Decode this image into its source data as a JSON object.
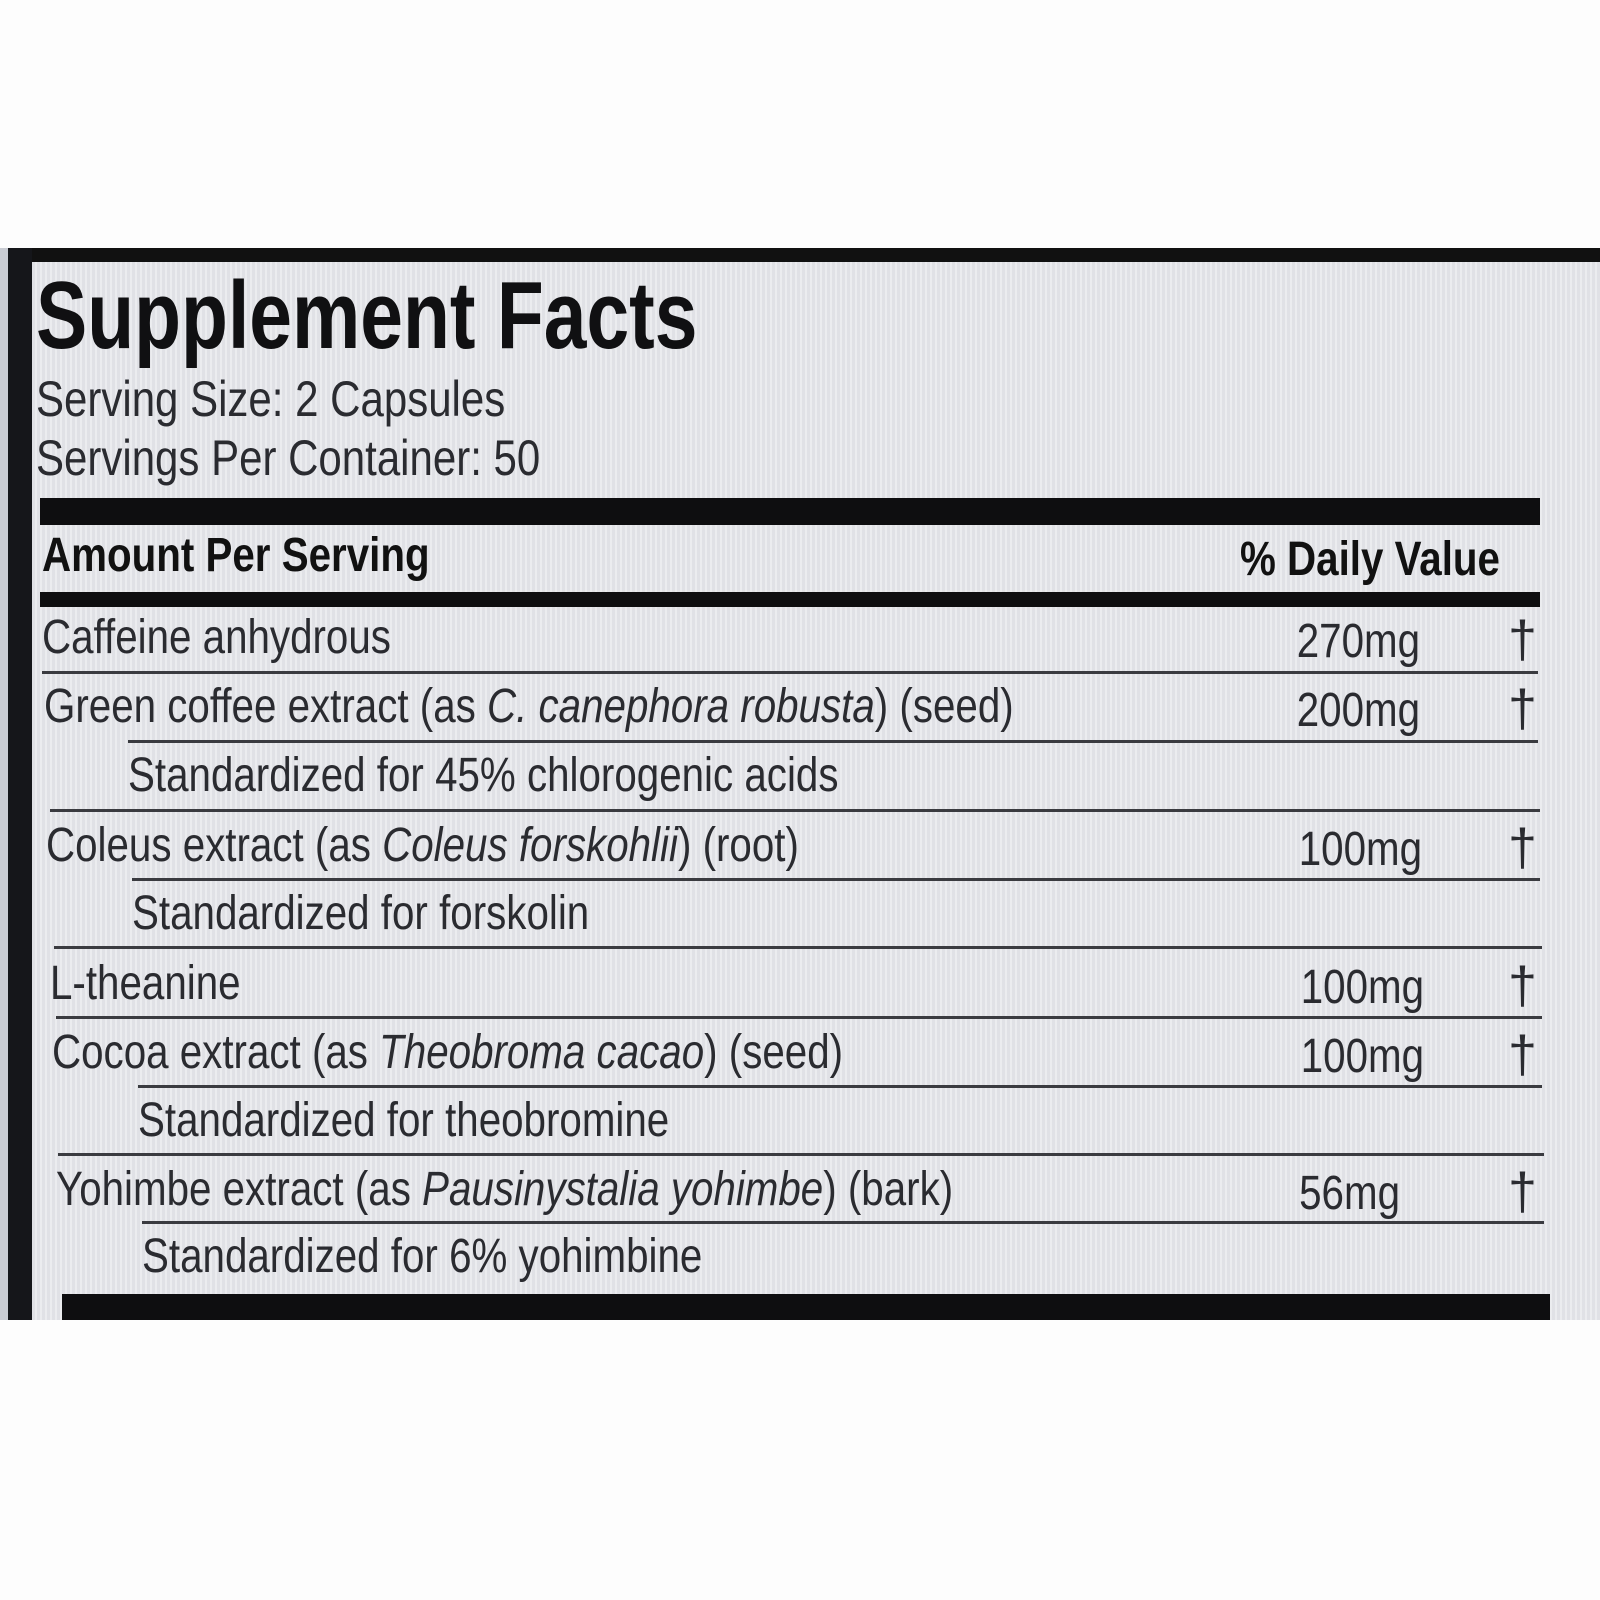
{
  "title": "Supplement Facts",
  "serving_size": "Serving Size: 2 Capsules",
  "servings_per_container": "Servings Per Container: 50",
  "header": {
    "amount": "Amount Per Serving",
    "daily_value": "% Daily Value"
  },
  "rows": [
    {
      "name": "Caffeine anhydrous",
      "amount": "270mg",
      "dv": "†"
    },
    {
      "name_pre": "Green coffee extract (as ",
      "name_italic": "C. canephora robusta",
      "name_post": ") (seed)",
      "amount": "200mg",
      "dv": "†",
      "note": "Standardized for 45% chlorogenic acids"
    },
    {
      "name_pre": "Coleus extract (as ",
      "name_italic": "Coleus forskohlii",
      "name_post": ") (root)",
      "amount": "100mg",
      "dv": "†",
      "note": "Standardized for forskolin"
    },
    {
      "name": "L-theanine",
      "amount": "100mg",
      "dv": "†"
    },
    {
      "name_pre": "Cocoa extract (as ",
      "name_italic": "Theobroma cacao",
      "name_post": ") (seed)",
      "amount": "100mg",
      "dv": "†",
      "note": "Standardized for theobromine"
    },
    {
      "name_pre": "Yohimbe extract (as ",
      "name_italic": "Pausinystalia yohimbe",
      "name_post": ") (bark)",
      "amount": "56mg",
      "dv": "†",
      "note": "Standardized for 6% yohimbine"
    }
  ]
}
